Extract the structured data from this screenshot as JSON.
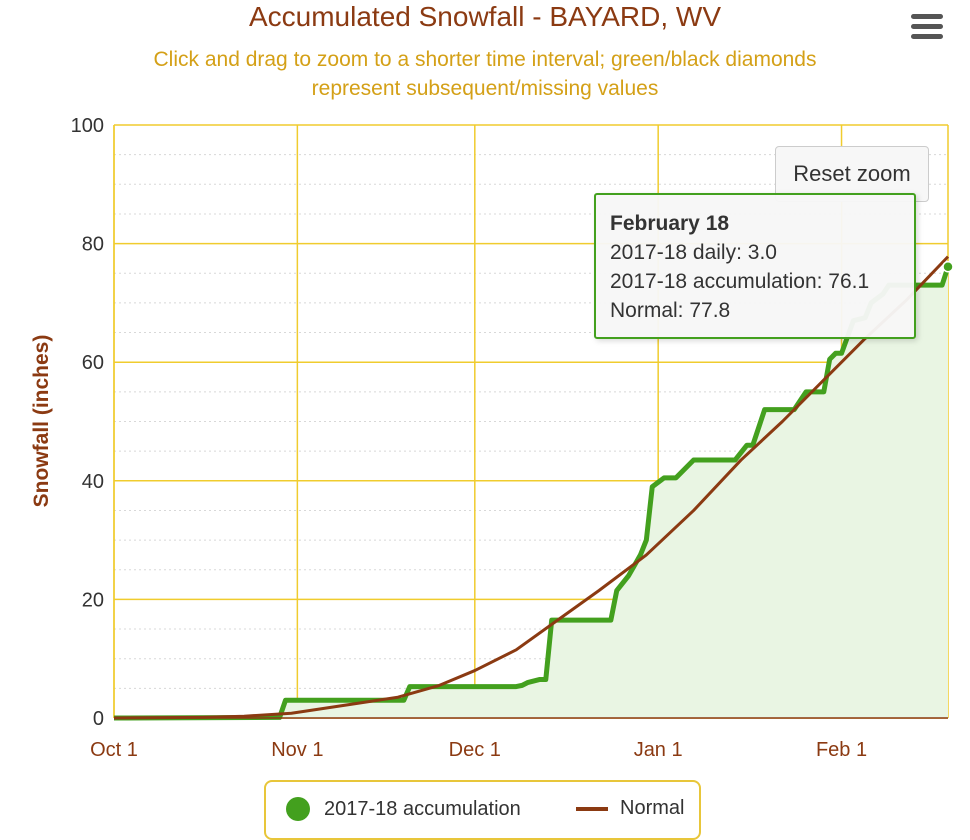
{
  "title": "Accumulated Snowfall - BAYARD, WV",
  "subtitle_line1": "Click and drag to zoom to a shorter time interval; green/black diamonds",
  "subtitle_line2": "represent subsequent/missing values",
  "reset_zoom_label": "Reset zoom",
  "menu_icon": "hamburger-menu-icon",
  "colors": {
    "title": "#8b3a12",
    "subtitle": "#d4a017",
    "axis_text": "#8b3a12",
    "grid": "#f0cc2e",
    "accumulation": "#43a01e",
    "normal": "#8b3a12",
    "fill": "#e9f5e3"
  },
  "tooltip": {
    "title": "February 18",
    "daily": "2017-18 daily: 3.0",
    "accumulation": "2017-18 accumulation: 76.1",
    "normal": "Normal: 77.8"
  },
  "legend": {
    "accumulation_label": "2017-18 accumulation",
    "normal_label": "Normal"
  },
  "chart_data": {
    "type": "area",
    "title": "Accumulated Snowfall - BAYARD, WV",
    "ylabel": "Snowfall (inches)",
    "ylim": [
      0,
      100
    ],
    "yticks": [
      0,
      20,
      40,
      60,
      80,
      100
    ],
    "xticks": [
      "Oct 1",
      "Nov 1",
      "Dec 1",
      "Jan 1",
      "Feb 1"
    ],
    "xrange_days": [
      0,
      141
    ],
    "x_unit": "days since Oct 1",
    "legend_position": "bottom-center",
    "series": [
      {
        "name": "2017-18 accumulation",
        "type": "area",
        "points": [
          [
            0,
            0
          ],
          [
            28,
            0.1
          ],
          [
            29,
            3.0
          ],
          [
            49,
            3.0
          ],
          [
            50,
            5.3
          ],
          [
            68,
            5.3
          ],
          [
            69,
            5.5
          ],
          [
            70,
            6.0
          ],
          [
            72,
            6.5
          ],
          [
            73,
            6.5
          ],
          [
            74,
            16.5
          ],
          [
            84,
            16.5
          ],
          [
            85,
            21.5
          ],
          [
            87,
            24.0
          ],
          [
            89,
            27.5
          ],
          [
            90,
            30.0
          ],
          [
            91,
            39.0
          ],
          [
            93,
            40.5
          ],
          [
            95,
            40.5
          ],
          [
            98,
            43.5
          ],
          [
            105,
            43.5
          ],
          [
            107,
            46.0
          ],
          [
            108,
            46.0
          ],
          [
            110,
            52.0
          ],
          [
            115,
            52.0
          ],
          [
            117,
            55.0
          ],
          [
            120,
            55.0
          ],
          [
            121,
            60.5
          ],
          [
            122,
            61.5
          ],
          [
            123,
            61.5
          ],
          [
            125,
            67.0
          ],
          [
            127,
            67.5
          ],
          [
            128,
            70.0
          ],
          [
            130,
            71.5
          ],
          [
            131,
            73.0
          ],
          [
            140,
            73.0
          ],
          [
            141,
            76.1
          ]
        ]
      },
      {
        "name": "Normal",
        "type": "line",
        "points": [
          [
            0,
            0
          ],
          [
            15,
            0.1
          ],
          [
            22,
            0.3
          ],
          [
            30,
            0.8
          ],
          [
            40,
            2.3
          ],
          [
            48,
            3.5
          ],
          [
            55,
            5.5
          ],
          [
            61,
            8.0
          ],
          [
            68,
            11.5
          ],
          [
            75,
            16.5
          ],
          [
            82,
            21.5
          ],
          [
            90,
            27.5
          ],
          [
            98,
            35.0
          ],
          [
            106,
            43.5
          ],
          [
            113,
            50.0
          ],
          [
            120,
            57.0
          ],
          [
            127,
            64.0
          ],
          [
            134,
            70.5
          ],
          [
            141,
            77.8
          ]
        ]
      }
    ]
  }
}
